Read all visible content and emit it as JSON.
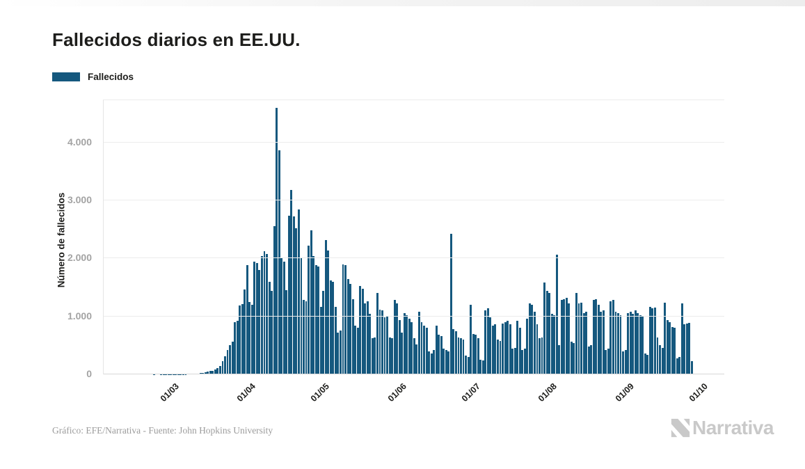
{
  "page": {
    "title": "Fallecidos diarios en EE.UU.",
    "legend_label": "Fallecidos",
    "footer_credit": "Gráfico: EFE/Narrativa - Fuente: John Hopkins University",
    "logo_text": "Narrativa"
  },
  "chart_data": {
    "type": "bar",
    "title": "Fallecidos diarios en EE.UU.",
    "series_name": "Fallecidos",
    "xlabel": "",
    "ylabel": "Número de fallecidos",
    "bar_color": "#15587E",
    "grid": true,
    "legend_position": "top-left",
    "ylim": [
      0,
      4730
    ],
    "y_ticks": [
      0,
      1000,
      2000,
      3000,
      4000
    ],
    "y_tick_labels": [
      "0",
      "1.000",
      "2.000",
      "3.000",
      "4.000"
    ],
    "x_start_date": "05/02/2020",
    "x_end_date": "01/10/2020",
    "x_frequency": "daily",
    "x_ticks": [
      {
        "label": "01/03",
        "day_index": 25
      },
      {
        "label": "01/04",
        "day_index": 56
      },
      {
        "label": "01/05",
        "day_index": 86
      },
      {
        "label": "01/06",
        "day_index": 117
      },
      {
        "label": "01/07",
        "day_index": 147
      },
      {
        "label": "01/08",
        "day_index": 178
      },
      {
        "label": "01/09",
        "day_index": 209
      },
      {
        "label": "01/10",
        "day_index": 239
      }
    ],
    "values": [
      0,
      0,
      0,
      0,
      0,
      0,
      0,
      0,
      0,
      0,
      0,
      0,
      0,
      0,
      0,
      0,
      0,
      0,
      0,
      0,
      1,
      0,
      0,
      1,
      1,
      1,
      2,
      4,
      3,
      2,
      4,
      4,
      5,
      4,
      7,
      9,
      10,
      13,
      15,
      20,
      26,
      34,
      46,
      55,
      63,
      85,
      110,
      140,
      225,
      310,
      420,
      500,
      560,
      900,
      930,
      1190,
      1210,
      1470,
      1890,
      1250,
      1200,
      1950,
      1920,
      1800,
      2040,
      2120,
      2080,
      1600,
      1440,
      2560,
      4600,
      3860,
      2000,
      1940,
      1450,
      2740,
      3180,
      2720,
      2520,
      2840,
      2020,
      1280,
      1260,
      2220,
      2480,
      2040,
      1880,
      1860,
      1160,
      1440,
      2320,
      2140,
      1620,
      1600,
      1170,
      720,
      760,
      1900,
      1880,
      1640,
      1560,
      1300,
      840,
      800,
      1520,
      1480,
      1220,
      1260,
      1040,
      620,
      640,
      1400,
      1120,
      1100,
      980,
      1000,
      640,
      620,
      1280,
      1220,
      940,
      720,
      1060,
      1020,
      960,
      900,
      620,
      520,
      1080,
      900,
      840,
      800,
      400,
      360,
      420,
      840,
      680,
      660,
      440,
      420,
      400,
      2420,
      780,
      740,
      640,
      620,
      600,
      320,
      300,
      1200,
      700,
      680,
      620,
      250,
      240,
      1100,
      1140,
      980,
      840,
      860,
      600,
      580,
      880,
      900,
      920,
      860,
      450,
      460,
      920,
      800,
      420,
      440,
      960,
      1220,
      1200,
      1080,
      860,
      620,
      640,
      1580,
      1440,
      1400,
      1040,
      1020,
      2070,
      500,
      1280,
      1300,
      1320,
      1220,
      560,
      540,
      1400,
      1220,
      1240,
      1060,
      1080,
      480,
      500,
      1280,
      1300,
      1200,
      1080,
      1100,
      420,
      440,
      1260,
      1280,
      1080,
      1060,
      1020,
      400,
      420,
      1060,
      1080,
      1040,
      1100,
      1060,
      1020,
      1000,
      360,
      340,
      1160,
      1140,
      1150,
      640,
      500,
      460,
      1240,
      940,
      900,
      820,
      800,
      280,
      300,
      1220,
      860,
      880,
      890,
      230
    ]
  }
}
